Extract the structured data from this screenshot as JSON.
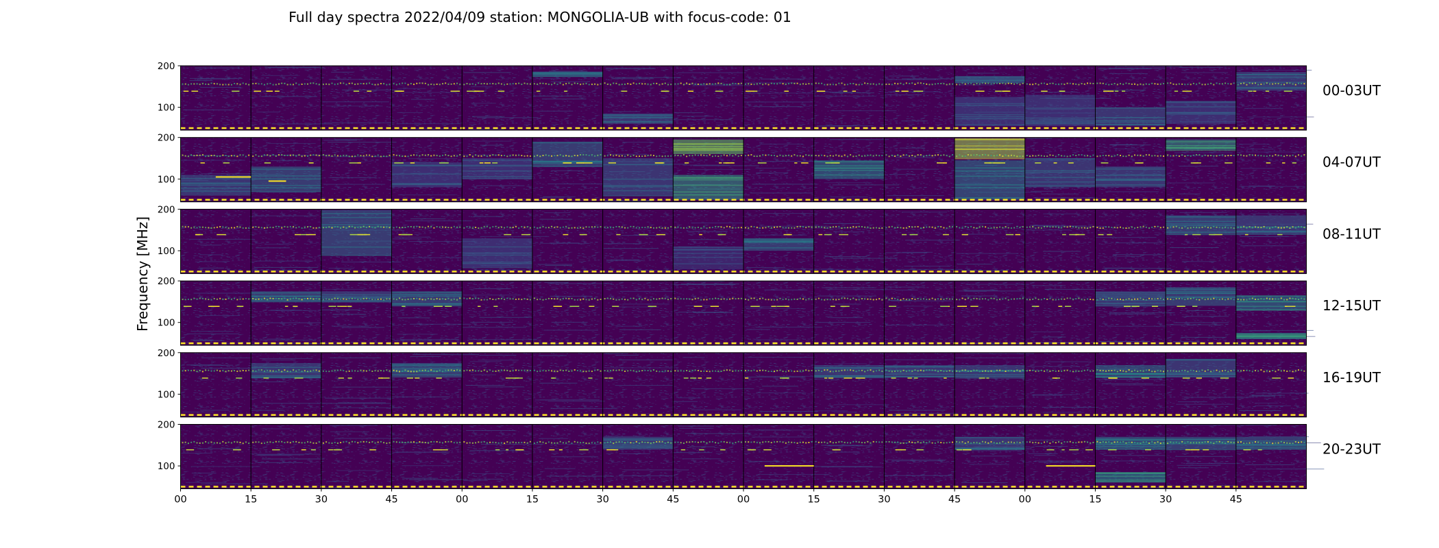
{
  "chart_data": {
    "type": "heatmap",
    "title": "Full day spectra 2022/04/09 station: MONGOLIA-UB with focus-code: 01",
    "ylabel": "Frequency [MHz]",
    "xlabel": "",
    "y_ticks": [
      "200",
      "100"
    ],
    "ylim": [
      45,
      200
    ],
    "x_ticks": [
      "00",
      "15",
      "30",
      "45",
      "00",
      "15",
      "30",
      "45",
      "00",
      "15",
      "30",
      "45",
      "00",
      "15",
      "30",
      "45"
    ],
    "panels_per_row": 16,
    "panel_minutes": 15,
    "colormap": [
      "#440154",
      "#3b528b",
      "#21918c",
      "#5ec962",
      "#fde725"
    ],
    "rows": [
      {
        "label": "00-03UT",
        "bursts": [
          {
            "panel": 5,
            "fmin": 175,
            "fmax": 186,
            "intensity": 0.35
          },
          {
            "panel": 6,
            "fmin": 60,
            "fmax": 85,
            "intensity": 0.3
          },
          {
            "panel": 11,
            "fmin": 55,
            "fmax": 125,
            "intensity": 0.25
          },
          {
            "panel": 11,
            "fmin": 160,
            "fmax": 175,
            "intensity": 0.3
          },
          {
            "panel": 12,
            "fmin": 55,
            "fmax": 130,
            "intensity": 0.25
          },
          {
            "panel": 13,
            "fmin": 55,
            "fmax": 100,
            "intensity": 0.3
          },
          {
            "panel": 14,
            "fmin": 60,
            "fmax": 115,
            "intensity": 0.25
          },
          {
            "panel": 15,
            "fmin": 140,
            "fmax": 185,
            "intensity": 0.3
          }
        ]
      },
      {
        "label": "04-07UT",
        "bursts": [
          {
            "panel": 0,
            "fmin": 60,
            "fmax": 110,
            "intensity": 0.3
          },
          {
            "panel": 1,
            "fmin": 70,
            "fmax": 130,
            "intensity": 0.35
          },
          {
            "panel": 3,
            "fmin": 80,
            "fmax": 140,
            "intensity": 0.25
          },
          {
            "panel": 4,
            "fmin": 100,
            "fmax": 150,
            "intensity": 0.25
          },
          {
            "panel": 5,
            "fmin": 130,
            "fmax": 190,
            "intensity": 0.35
          },
          {
            "panel": 6,
            "fmin": 60,
            "fmax": 150,
            "intensity": 0.3
          },
          {
            "panel": 7,
            "fmin": 160,
            "fmax": 195,
            "intensity": 0.75
          },
          {
            "panel": 7,
            "fmin": 50,
            "fmax": 110,
            "intensity": 0.55
          },
          {
            "panel": 9,
            "fmin": 100,
            "fmax": 145,
            "intensity": 0.45
          },
          {
            "panel": 11,
            "fmin": 150,
            "fmax": 198,
            "intensity": 0.85
          },
          {
            "panel": 11,
            "fmin": 50,
            "fmax": 145,
            "intensity": 0.4
          },
          {
            "panel": 12,
            "fmin": 80,
            "fmax": 150,
            "intensity": 0.3
          },
          {
            "panel": 13,
            "fmin": 80,
            "fmax": 130,
            "intensity": 0.3
          },
          {
            "panel": 14,
            "fmin": 170,
            "fmax": 195,
            "intensity": 0.55
          }
        ]
      },
      {
        "label": "08-11UT",
        "bursts": [
          {
            "panel": 2,
            "fmin": 90,
            "fmax": 198,
            "intensity": 0.35
          },
          {
            "panel": 4,
            "fmin": 60,
            "fmax": 130,
            "intensity": 0.25
          },
          {
            "panel": 7,
            "fmin": 55,
            "fmax": 110,
            "intensity": 0.2
          },
          {
            "panel": 8,
            "fmin": 100,
            "fmax": 130,
            "intensity": 0.35
          },
          {
            "panel": 14,
            "fmin": 140,
            "fmax": 185,
            "intensity": 0.35
          },
          {
            "panel": 15,
            "fmin": 140,
            "fmax": 185,
            "intensity": 0.3
          }
        ]
      },
      {
        "label": "12-15UT",
        "bursts": [
          {
            "panel": 1,
            "fmin": 150,
            "fmax": 175,
            "intensity": 0.35
          },
          {
            "panel": 2,
            "fmin": 150,
            "fmax": 175,
            "intensity": 0.3
          },
          {
            "panel": 3,
            "fmin": 140,
            "fmax": 175,
            "intensity": 0.35
          },
          {
            "panel": 13,
            "fmin": 140,
            "fmax": 175,
            "intensity": 0.3
          },
          {
            "panel": 14,
            "fmin": 140,
            "fmax": 185,
            "intensity": 0.35
          },
          {
            "panel": 15,
            "fmin": 130,
            "fmax": 165,
            "intensity": 0.45
          },
          {
            "panel": 15,
            "fmin": 60,
            "fmax": 75,
            "intensity": 0.5
          }
        ]
      },
      {
        "label": "16-19UT",
        "bursts": [
          {
            "panel": 1,
            "fmin": 140,
            "fmax": 175,
            "intensity": 0.3
          },
          {
            "panel": 3,
            "fmin": 140,
            "fmax": 175,
            "intensity": 0.35
          },
          {
            "panel": 9,
            "fmin": 140,
            "fmax": 170,
            "intensity": 0.3
          },
          {
            "panel": 10,
            "fmin": 140,
            "fmax": 170,
            "intensity": 0.3
          },
          {
            "panel": 11,
            "fmin": 140,
            "fmax": 170,
            "intensity": 0.3
          },
          {
            "panel": 13,
            "fmin": 140,
            "fmax": 170,
            "intensity": 0.4
          },
          {
            "panel": 14,
            "fmin": 140,
            "fmax": 185,
            "intensity": 0.3
          }
        ]
      },
      {
        "label": "20-23UT",
        "bursts": [
          {
            "panel": 6,
            "fmin": 140,
            "fmax": 170,
            "intensity": 0.3
          },
          {
            "panel": 11,
            "fmin": 140,
            "fmax": 170,
            "intensity": 0.3
          },
          {
            "panel": 13,
            "fmin": 60,
            "fmax": 85,
            "intensity": 0.5
          },
          {
            "panel": 13,
            "fmin": 140,
            "fmax": 170,
            "intensity": 0.4
          },
          {
            "panel": 14,
            "fmin": 140,
            "fmax": 170,
            "intensity": 0.35
          },
          {
            "panel": 15,
            "fmin": 140,
            "fmax": 170,
            "intensity": 0.35
          }
        ]
      }
    ],
    "lines": [
      {
        "row": 1,
        "panel": 0,
        "t_start": 0.5,
        "t_end": 1.0,
        "freq": 105
      },
      {
        "row": 1,
        "panel": 1,
        "t_start": 0.25,
        "t_end": 0.5,
        "freq": 95
      },
      {
        "row": 5,
        "panel": 8,
        "t_start": 0.3,
        "t_end": 1.0,
        "freq": 100
      },
      {
        "row": 5,
        "panel": 12,
        "t_start": 0.3,
        "t_end": 1.0,
        "freq": 100
      }
    ]
  }
}
